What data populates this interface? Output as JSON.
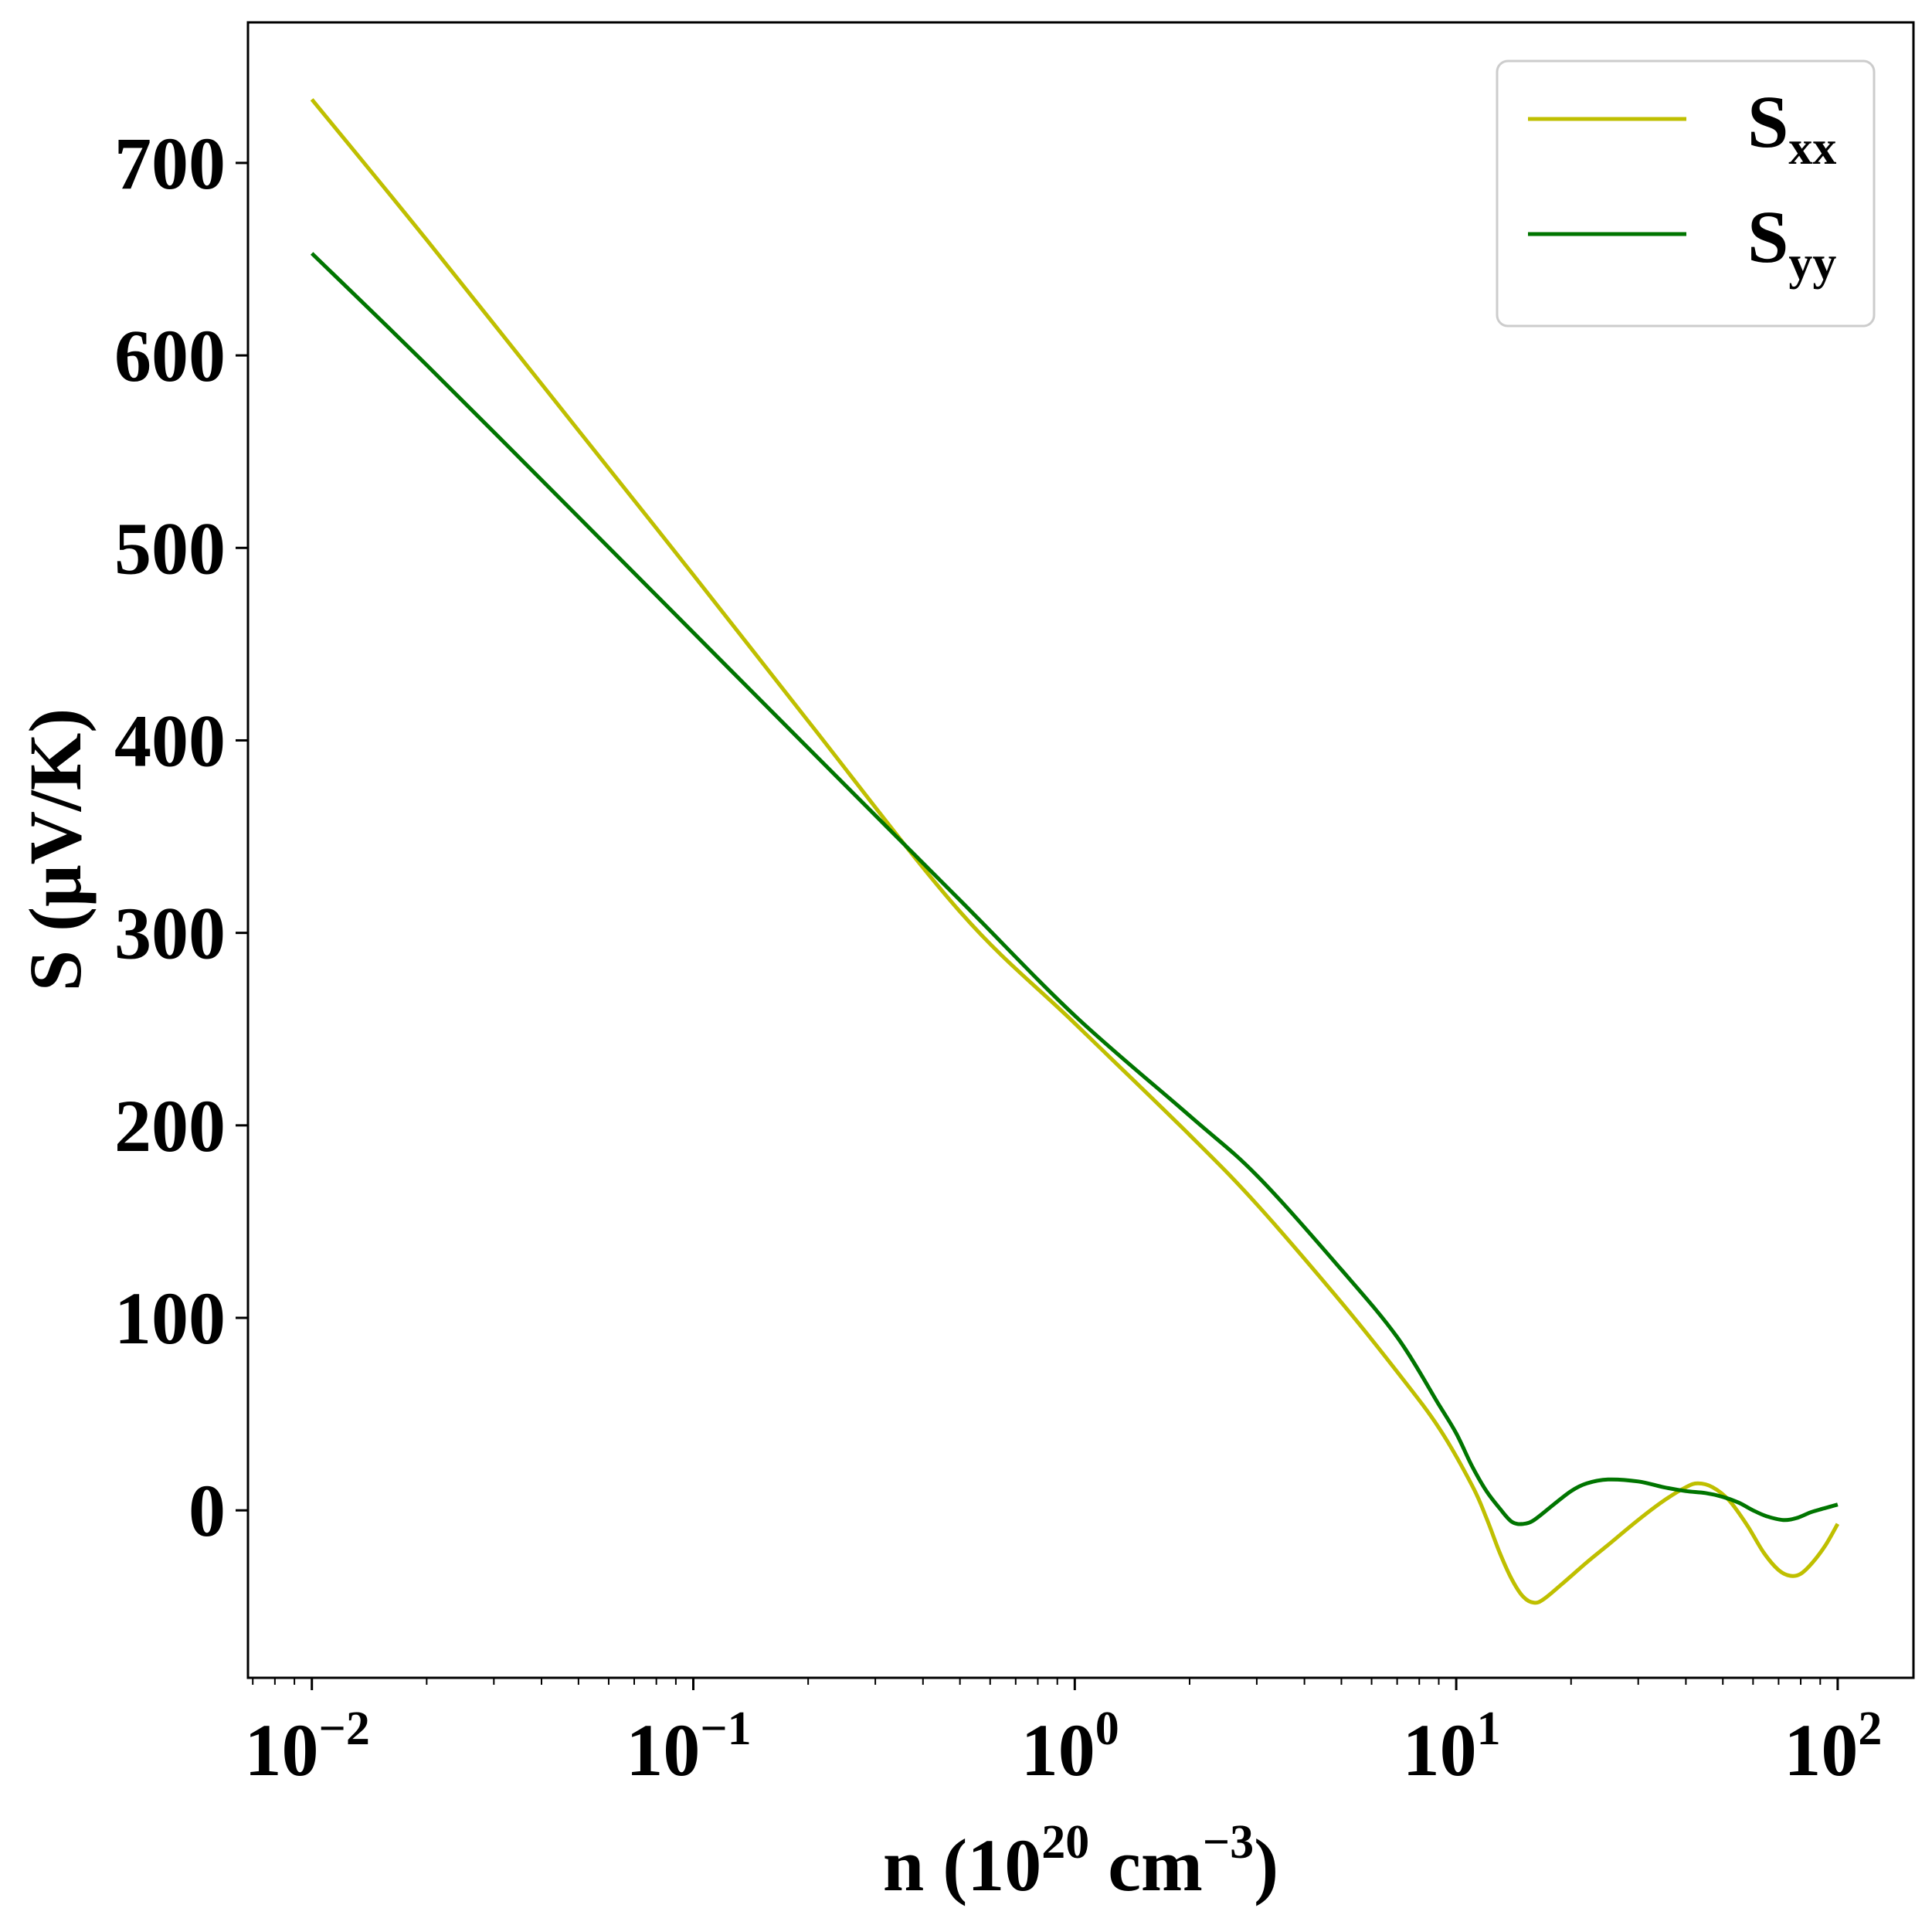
{
  "chart_data": {
    "type": "line",
    "xscale": "log",
    "xlim": [
      0.0068,
      158
    ],
    "ylim": [
      -87,
      773
    ],
    "grid": false,
    "legend_position": "top-right",
    "x_ticks": [
      {
        "value": 0.01,
        "base": "10",
        "exp": "−2"
      },
      {
        "value": 0.1,
        "base": "10",
        "exp": "−1"
      },
      {
        "value": 1,
        "base": "10",
        "exp": "0"
      },
      {
        "value": 10,
        "base": "10",
        "exp": "1"
      },
      {
        "value": 100,
        "base": "10",
        "exp": "2"
      }
    ],
    "y_ticks": [
      {
        "value": 0,
        "label": "0"
      },
      {
        "value": 100,
        "label": "100"
      },
      {
        "value": 200,
        "label": "200"
      },
      {
        "value": 300,
        "label": "300"
      },
      {
        "value": 400,
        "label": "400"
      },
      {
        "value": 500,
        "label": "500"
      },
      {
        "value": 600,
        "label": "600"
      },
      {
        "value": 700,
        "label": "700"
      }
    ],
    "xlabel": {
      "main": "n (10",
      "sup": "20",
      "unit": " cm",
      "unit_sup": "−3",
      "close": ")"
    },
    "ylabel": "S (μV/K)",
    "series": [
      {
        "name_main": "S",
        "name_sub": "xx",
        "color": "#bfbf00",
        "points": [
          [
            0.01,
            733
          ],
          [
            0.02,
            660
          ],
          [
            0.05,
            561
          ],
          [
            0.1,
            486
          ],
          [
            0.2,
            410
          ],
          [
            0.5,
            311
          ],
          [
            1,
            253
          ],
          [
            2,
            195
          ],
          [
            3,
            159
          ],
          [
            5,
            108
          ],
          [
            7,
            72
          ],
          [
            9,
            43
          ],
          [
            11,
            13
          ],
          [
            12,
            -4
          ],
          [
            13,
            -22
          ],
          [
            14,
            -36
          ],
          [
            15,
            -45
          ],
          [
            16,
            -48
          ],
          [
            17,
            -46
          ],
          [
            19,
            -38
          ],
          [
            22,
            -27
          ],
          [
            25,
            -18
          ],
          [
            30,
            -5
          ],
          [
            35,
            5
          ],
          [
            40,
            12
          ],
          [
            43,
            14
          ],
          [
            47,
            12
          ],
          [
            52,
            5
          ],
          [
            58,
            -8
          ],
          [
            64,
            -22
          ],
          [
            70,
            -31
          ],
          [
            75,
            -34
          ],
          [
            80,
            -33
          ],
          [
            86,
            -27
          ],
          [
            93,
            -18
          ],
          [
            100,
            -7
          ]
        ]
      },
      {
        "name_main": "S",
        "name_sub": "yy",
        "color": "#007500",
        "points": [
          [
            0.01,
            653
          ],
          [
            0.02,
            595
          ],
          [
            0.05,
            516
          ],
          [
            0.1,
            456
          ],
          [
            0.2,
            396
          ],
          [
            0.5,
            317
          ],
          [
            1,
            257
          ],
          [
            2,
            205
          ],
          [
            3,
            174
          ],
          [
            5,
            125
          ],
          [
            7,
            90
          ],
          [
            9,
            55
          ],
          [
            10,
            40
          ],
          [
            11,
            23
          ],
          [
            12,
            10
          ],
          [
            13,
            1
          ],
          [
            14,
            -6
          ],
          [
            15,
            -7
          ],
          [
            16,
            -5
          ],
          [
            18,
            3
          ],
          [
            20,
            10
          ],
          [
            22,
            14
          ],
          [
            25,
            16
          ],
          [
            30,
            15
          ],
          [
            35,
            12
          ],
          [
            40,
            10
          ],
          [
            45,
            9
          ],
          [
            50,
            7
          ],
          [
            55,
            4
          ],
          [
            60,
            0
          ],
          [
            65,
            -3
          ],
          [
            72,
            -5
          ],
          [
            78,
            -4
          ],
          [
            85,
            -1
          ],
          [
            92,
            1
          ],
          [
            100,
            3
          ]
        ]
      }
    ]
  }
}
